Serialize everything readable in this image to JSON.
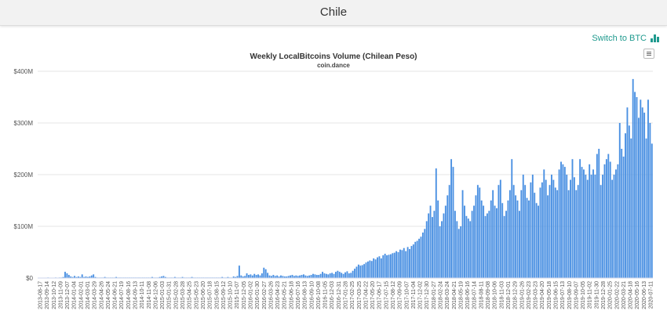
{
  "header": {
    "title": "Chile"
  },
  "toggle": {
    "label": "Switch to BTC",
    "icon": "bar-chart-icon",
    "color": "#1f9a8e"
  },
  "menu": {
    "icon": "hamburger-menu-icon"
  },
  "chart_data": {
    "type": "bar",
    "title": "Weekly LocalBitcoins Volume (Chilean Peso)",
    "subtitle": "coin.dance",
    "xlabel": "",
    "ylabel": "",
    "bar_color": "#4a90e2",
    "grid": true,
    "ylim": [
      0,
      400
    ],
    "yticks": [
      {
        "value": 0,
        "label": "$0"
      },
      {
        "value": 100,
        "label": "$100M"
      },
      {
        "value": 200,
        "label": "$200M"
      },
      {
        "value": 300,
        "label": "$300M"
      },
      {
        "value": 400,
        "label": "$400M"
      }
    ],
    "x_labels": [
      "2013-08-17",
      "2013-09-14",
      "2013-10-12",
      "2013-11-09",
      "2013-12-07",
      "2014-01-04",
      "2014-02-01",
      "2014-03-01",
      "2014-03-29",
      "2014-04-26",
      "2014-05-24",
      "2014-06-21",
      "2014-07-19",
      "2014-08-16",
      "2014-09-13",
      "2014-10-11",
      "2014-11-08",
      "2014-12-06",
      "2015-01-03",
      "2015-01-31",
      "2015-02-28",
      "2015-03-28",
      "2015-04-25",
      "2015-05-23",
      "2015-06-20",
      "2015-07-18",
      "2015-08-15",
      "2015-09-12",
      "2015-10-10",
      "2015-11-07",
      "2015-12-05",
      "2016-01-02",
      "2016-01-30",
      "2016-02-27",
      "2016-03-26",
      "2016-04-23",
      "2016-05-21",
      "2016-06-18",
      "2016-07-16",
      "2016-08-13",
      "2016-09-10",
      "2016-10-08",
      "2016-11-05",
      "2016-12-03",
      "2016-12-31",
      "2017-01-28",
      "2017-02-25",
      "2017-03-25",
      "2017-04-22",
      "2017-05-20",
      "2017-06-17",
      "2017-07-15",
      "2017-08-12",
      "2017-09-09",
      "2017-10-07",
      "2017-11-04",
      "2017-12-02",
      "2017-12-30",
      "2018-01-27",
      "2018-02-24",
      "2018-03-24",
      "2018-04-21",
      "2018-05-19",
      "2018-06-16",
      "2018-07-14",
      "2018-08-11",
      "2018-09-08",
      "2018-10-06",
      "2018-11-03",
      "2018-12-01",
      "2018-12-29",
      "2019-01-26",
      "2019-02-23",
      "2019-03-23",
      "2019-04-20",
      "2019-05-18",
      "2019-06-15",
      "2019-07-13",
      "2019-08-10",
      "2019-09-07",
      "2019-10-05",
      "2019-11-02",
      "2019-11-30",
      "2019-12-28",
      "2020-01-25",
      "2020-02-22",
      "2020-03-21",
      "2020-04-18",
      "2020-05-16",
      "2020-06-13",
      "2020-07-11"
    ],
    "values_unit": "millions CLP",
    "values": [
      0,
      0,
      0,
      0,
      0,
      1,
      0,
      0,
      0,
      1,
      0,
      1,
      1,
      2,
      12,
      9,
      6,
      3,
      2,
      4,
      2,
      3,
      2,
      7,
      2,
      3,
      2,
      3,
      5,
      7,
      2,
      1,
      1,
      1,
      1,
      2,
      1,
      1,
      1,
      1,
      1,
      2,
      1,
      1,
      1,
      1,
      1,
      1,
      1,
      1,
      1,
      1,
      1,
      1,
      1,
      1,
      1,
      1,
      1,
      1,
      2,
      1,
      1,
      1,
      2,
      3,
      4,
      2,
      1,
      1,
      1,
      1,
      2,
      1,
      1,
      1,
      2,
      1,
      1,
      1,
      1,
      2,
      1,
      1,
      1,
      1,
      1,
      1,
      1,
      1,
      1,
      1,
      1,
      1,
      1,
      1,
      1,
      2,
      1,
      1,
      2,
      1,
      1,
      3,
      2,
      4,
      24,
      5,
      3,
      4,
      9,
      6,
      7,
      5,
      8,
      6,
      7,
      5,
      9,
      20,
      17,
      10,
      5,
      4,
      6,
      4,
      5,
      3,
      5,
      4,
      3,
      3,
      4,
      5,
      6,
      4,
      5,
      4,
      5,
      6,
      7,
      5,
      4,
      5,
      6,
      8,
      7,
      6,
      6,
      8,
      12,
      9,
      8,
      7,
      9,
      10,
      8,
      12,
      14,
      12,
      10,
      8,
      11,
      13,
      9,
      10,
      14,
      18,
      22,
      26,
      24,
      25,
      27,
      30,
      32,
      34,
      33,
      38,
      36,
      40,
      42,
      38,
      44,
      47,
      44,
      45,
      46,
      48,
      49,
      52,
      50,
      55,
      54,
      58,
      52,
      60,
      56,
      62,
      65,
      70,
      72,
      76,
      80,
      88,
      95,
      110,
      125,
      140,
      118,
      130,
      212,
      150,
      100,
      110,
      125,
      140,
      160,
      180,
      230,
      215,
      130,
      110,
      95,
      100,
      170,
      140,
      120,
      115,
      110,
      130,
      140,
      160,
      180,
      175,
      150,
      140,
      120,
      125,
      130,
      150,
      170,
      140,
      135,
      180,
      190,
      145,
      120,
      130,
      150,
      170,
      230,
      180,
      160,
      150,
      130,
      170,
      200,
      180,
      155,
      150,
      185,
      200,
      165,
      145,
      140,
      175,
      185,
      210,
      190,
      160,
      180,
      200,
      190,
      175,
      170,
      210,
      225,
      220,
      215,
      200,
      170,
      190,
      230,
      195,
      170,
      180,
      230,
      215,
      210,
      200,
      190,
      220,
      200,
      210,
      200,
      240,
      250,
      180,
      200,
      220,
      230,
      240,
      225,
      190,
      200,
      210,
      220,
      300,
      250,
      235,
      280,
      330,
      295,
      270,
      385,
      360,
      350,
      310,
      345,
      330,
      320,
      270,
      345,
      300,
      260
    ]
  }
}
